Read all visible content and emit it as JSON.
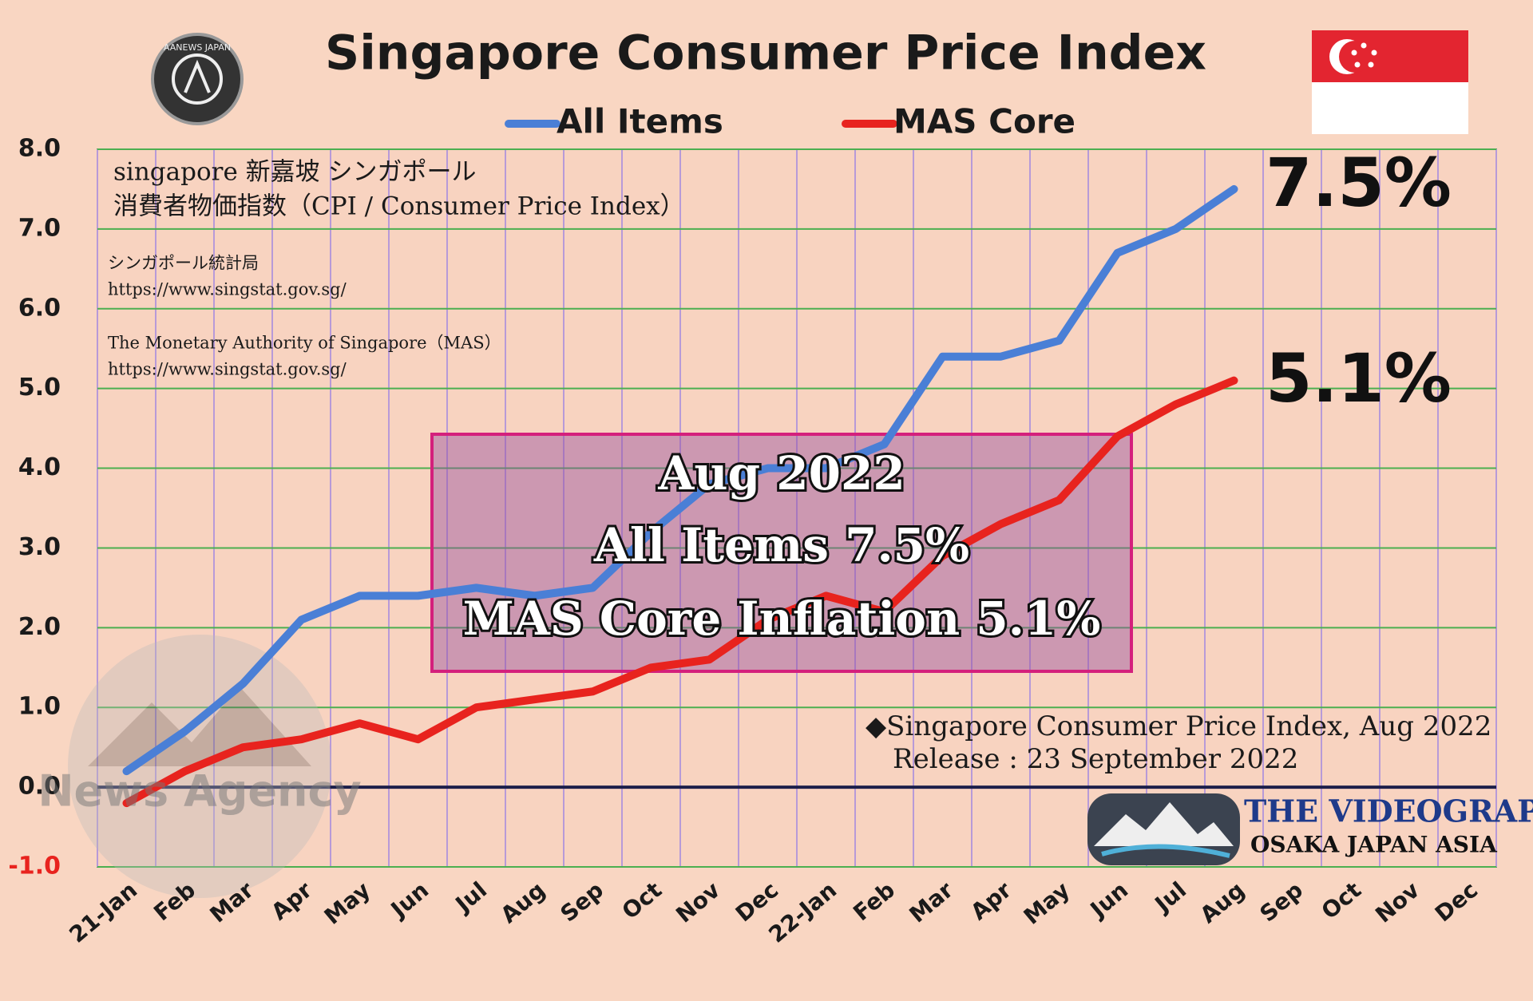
{
  "chart_data": {
    "type": "line",
    "title": "Singapore Consumer Price Index",
    "categories": [
      "21-Jan",
      "Feb",
      "Mar",
      "Apr",
      "May",
      "Jun",
      "Jul",
      "Aug",
      "Sep",
      "Oct",
      "Nov",
      "Dec",
      "22-Jan",
      "Feb",
      "Mar",
      "Apr",
      "May",
      "Jun",
      "Jul",
      "Aug",
      "Sep",
      "Oct",
      "Nov",
      "Dec"
    ],
    "series": [
      {
        "name": "All Items",
        "color": "#4a7fd6",
        "values": [
          0.2,
          0.7,
          1.3,
          2.1,
          2.4,
          2.4,
          2.5,
          2.4,
          2.5,
          3.2,
          3.8,
          4.0,
          4.0,
          4.3,
          5.4,
          5.4,
          5.6,
          6.7,
          7.0,
          7.5,
          null,
          null,
          null,
          null
        ]
      },
      {
        "name": "MAS Core",
        "color": "#e8231e",
        "values": [
          -0.2,
          0.2,
          0.5,
          0.6,
          0.8,
          0.6,
          1.0,
          1.1,
          1.2,
          1.5,
          1.6,
          2.1,
          2.4,
          2.2,
          2.9,
          3.3,
          3.6,
          4.4,
          4.8,
          5.1,
          null,
          null,
          null,
          null
        ]
      }
    ],
    "ylim": [
      -1,
      8
    ],
    "yticks": [
      {
        "value": -1,
        "label": "-1.0"
      },
      {
        "value": 0,
        "label": "0.0"
      },
      {
        "value": 1,
        "label": "1.0"
      },
      {
        "value": 2,
        "label": "2.0"
      },
      {
        "value": 3,
        "label": "3.0"
      },
      {
        "value": 4,
        "label": "4.0"
      },
      {
        "value": 5,
        "label": "5.0"
      },
      {
        "value": 6,
        "label": "6.0"
      },
      {
        "value": 7,
        "label": "7.0"
      },
      {
        "value": 8,
        "label": "8.0"
      }
    ],
    "grid": true,
    "legend": "top",
    "notes": [
      "singapore 新嘉坡 シンガポール",
      "消費者物価指数（CPI / Consumer Price Index）",
      "シンガポール統計局",
      "https://www.singstat.gov.sg/",
      "The Monetary Authority of Singapore（MAS）",
      "https://www.singstat.gov.sg/"
    ],
    "callouts": [
      "7.5%",
      "5.1%"
    ],
    "box_text": [
      "Aug 2022",
      "All Items  7.5%",
      "MAS Core Inflation    5.1%"
    ],
    "release": [
      "◆Singapore Consumer Price Index, Aug 2022",
      "Release : 23 September 2022"
    ],
    "logos": [
      "AANEWS JAPAN",
      "News Agency",
      "THE VIDEOGRAPHY",
      "OSAKA JAPAN ASIA"
    ]
  }
}
